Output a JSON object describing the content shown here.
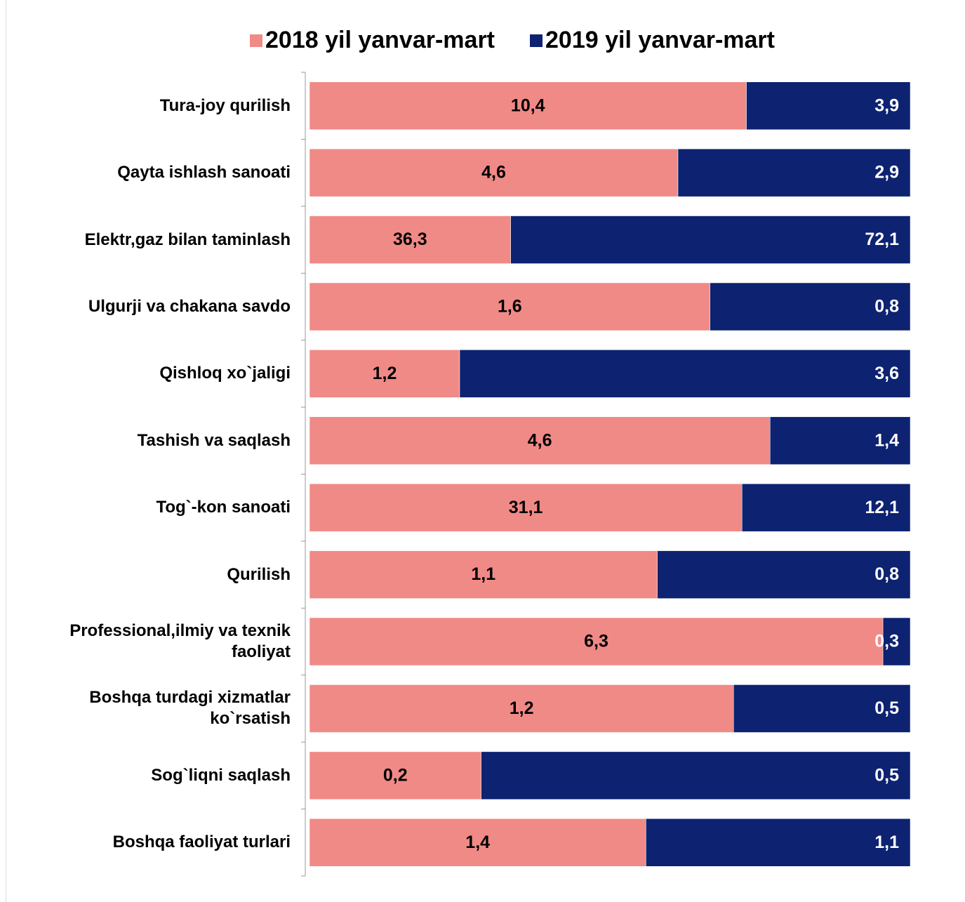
{
  "chart_data": {
    "type": "bar",
    "orientation": "horizontal",
    "stacking": "percent",
    "legend": "top",
    "categories": [
      "Tura-joy qurilish",
      "Qayta ishlash sanoati",
      "Elektr,gaz bilan taminlash",
      "Ulgurji va chakana savdo",
      "Qishloq xo`jaligi",
      "Tashish va saqlash",
      "Tog`-kon sanoati",
      "Qurilish",
      "Professional,ilmiy va texnik faoliyat",
      "Boshqa turdagi xizmatlar ko`rsatish",
      "Sog`liqni saqlash",
      "Boshqa faoliyat turlari"
    ],
    "series": [
      {
        "name": "2018 yil yanvar-mart",
        "color": "#f08a87",
        "values": [
          10.4,
          4.6,
          36.3,
          1.6,
          1.2,
          4.6,
          31.1,
          1.1,
          6.3,
          1.2,
          0.2,
          1.4
        ],
        "value_labels": [
          "10,4",
          "4,6",
          "36,3",
          "1,6",
          "1,2",
          "4,6",
          "31,1",
          "1,1",
          "6,3",
          "1,2",
          "0,2",
          "1,4"
        ]
      },
      {
        "name": "2019 yil yanvar-mart",
        "color": "#0d2270",
        "values": [
          3.9,
          2.9,
          72.1,
          0.8,
          3.6,
          1.4,
          12.1,
          0.8,
          0.3,
          0.5,
          0.5,
          1.1
        ],
        "value_labels": [
          "3,9",
          "2,9",
          "72,1",
          "0,8",
          "3,6",
          "1,4",
          "12,1",
          "0,8",
          "0,3",
          "0,5",
          "0,5",
          "1,1"
        ]
      }
    ]
  }
}
